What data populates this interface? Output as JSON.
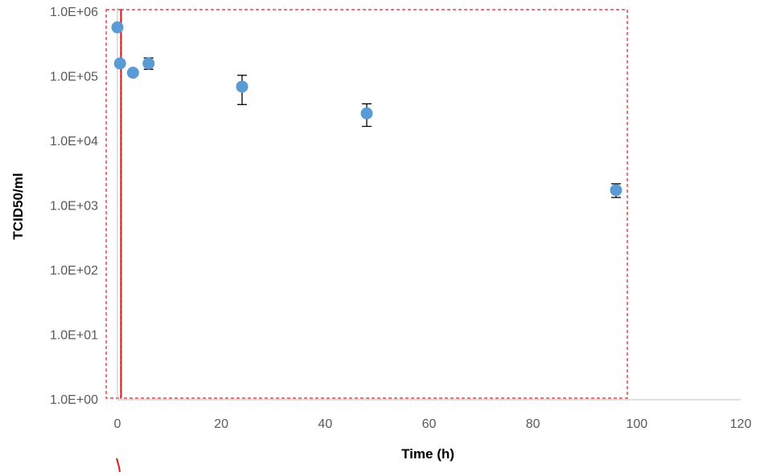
{
  "chart_data": {
    "type": "scatter",
    "title": "",
    "xlabel": "Time (h)",
    "ylabel": "TCID50/ml",
    "xlim": [
      0,
      120
    ],
    "ylim": [
      1,
      1000000
    ],
    "yscale": "log",
    "x_ticks": [
      0,
      20,
      40,
      60,
      80,
      100,
      120
    ],
    "x_tick_labels": [
      "0",
      "20",
      "40",
      "60",
      "80",
      "100",
      "120"
    ],
    "y_ticks": [
      1,
      10,
      100,
      1000,
      10000,
      100000,
      1000000
    ],
    "y_tick_labels": [
      "1.0E+00",
      "1.0E+01",
      "1.0E+02",
      "1.0E+03",
      "1.0E+04",
      "1.0E+05",
      "1.0E+06"
    ],
    "grid": false,
    "legend": "none",
    "marker_color": "#5b9bd5",
    "error_bar_color": "#000000",
    "axis_color": "#bfbfbf",
    "annotation_color": "#e31a1c",
    "series": [
      {
        "points": [
          {
            "x": 0,
            "y": 580000
          },
          {
            "x": 0.5,
            "y": 160000
          },
          {
            "x": 3,
            "y": 115000
          },
          {
            "x": 6,
            "y": 160000,
            "y_err_low": 130000,
            "y_err_high": 195000
          },
          {
            "x": 24,
            "y": 70000,
            "y_err_low": 37000,
            "y_err_high": 105000
          },
          {
            "x": 48,
            "y": 27000,
            "y_err_low": 17000,
            "y_err_high": 38000
          },
          {
            "x": 96,
            "y": 1750,
            "y_err_low": 1350,
            "y_err_high": 2200
          }
        ]
      }
    ]
  }
}
